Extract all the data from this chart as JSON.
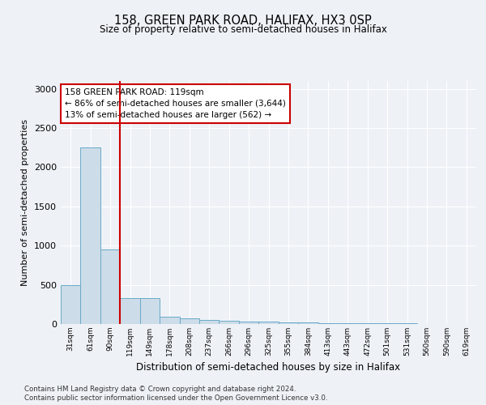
{
  "title1": "158, GREEN PARK ROAD, HALIFAX, HX3 0SP",
  "title2": "Size of property relative to semi-detached houses in Halifax",
  "xlabel": "Distribution of semi-detached houses by size in Halifax",
  "ylabel": "Number of semi-detached properties",
  "bin_labels": [
    "31sqm",
    "61sqm",
    "90sqm",
    "119sqm",
    "149sqm",
    "178sqm",
    "208sqm",
    "237sqm",
    "266sqm",
    "296sqm",
    "325sqm",
    "355sqm",
    "384sqm",
    "413sqm",
    "443sqm",
    "472sqm",
    "501sqm",
    "531sqm",
    "560sqm",
    "590sqm",
    "619sqm"
  ],
  "bar_values": [
    500,
    2250,
    950,
    330,
    330,
    90,
    70,
    55,
    40,
    35,
    30,
    25,
    20,
    15,
    12,
    10,
    8,
    6,
    5,
    5,
    0
  ],
  "bar_color": "#ccdce8",
  "bar_edge_color": "#6aaac8",
  "property_bin_index": 2,
  "annotation_title": "158 GREEN PARK ROAD: 119sqm",
  "annotation_line1": "← 86% of semi-detached houses are smaller (3,644)",
  "annotation_line2": "13% of semi-detached houses are larger (562) →",
  "annotation_box_color": "#ffffff",
  "annotation_box_edge_color": "#cc0000",
  "property_line_color": "#cc0000",
  "ylim": [
    0,
    3100
  ],
  "yticks": [
    0,
    500,
    1000,
    1500,
    2000,
    2500,
    3000
  ],
  "footer1": "Contains HM Land Registry data © Crown copyright and database right 2024.",
  "footer2": "Contains public sector information licensed under the Open Government Licence v3.0.",
  "background_color": "#eef2f7",
  "plot_background": "#eef2f7"
}
